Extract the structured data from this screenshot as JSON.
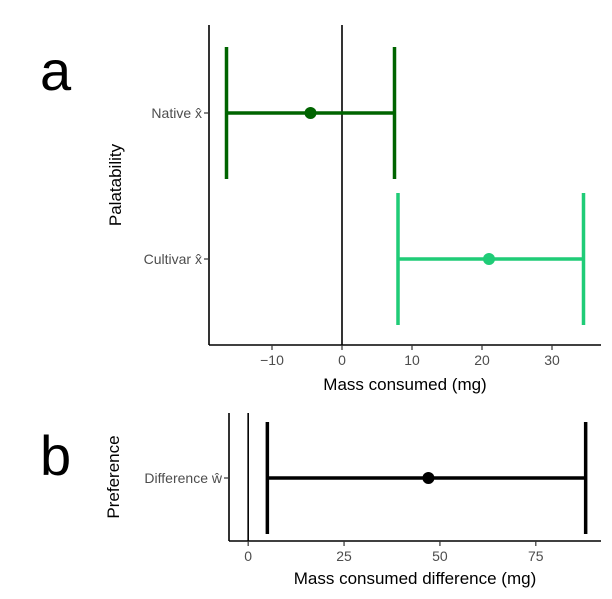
{
  "chart_data": [
    {
      "type": "errorbar",
      "panel_label": "a",
      "xlabel": "Mass consumed (mg)",
      "ylabel": "Palatability",
      "xlim": [
        -19,
        37
      ],
      "x_ticks": [
        -10,
        0,
        10,
        20,
        30
      ],
      "x_tick_labels": [
        "−10",
        "0",
        "10",
        "20",
        "30"
      ],
      "reference_line": 0,
      "grid": false,
      "categories": [
        {
          "label": "Native",
          "symbol": "x̂"
        },
        {
          "label": "Cultivar",
          "symbol": "x̂"
        }
      ],
      "series": [
        {
          "category": "Native",
          "estimate": -4.5,
          "lower": -16.5,
          "upper": 7.5,
          "color": "#006400"
        },
        {
          "category": "Cultivar",
          "estimate": 21,
          "lower": 8,
          "upper": 34.5,
          "color": "#1fcc77"
        }
      ]
    },
    {
      "type": "errorbar",
      "panel_label": "b",
      "xlabel": "Mass consumed difference (mg)",
      "ylabel": "Preference",
      "xlim": [
        -5,
        92
      ],
      "x_ticks": [
        0,
        25,
        50,
        75
      ],
      "x_tick_labels": [
        "0",
        "25",
        "50",
        "75"
      ],
      "reference_line": 0,
      "grid": false,
      "categories": [
        {
          "label": "Difference",
          "symbol": "ŵ"
        }
      ],
      "series": [
        {
          "category": "Difference",
          "estimate": 47,
          "lower": 5,
          "upper": 88,
          "color": "#000000"
        }
      ]
    }
  ]
}
